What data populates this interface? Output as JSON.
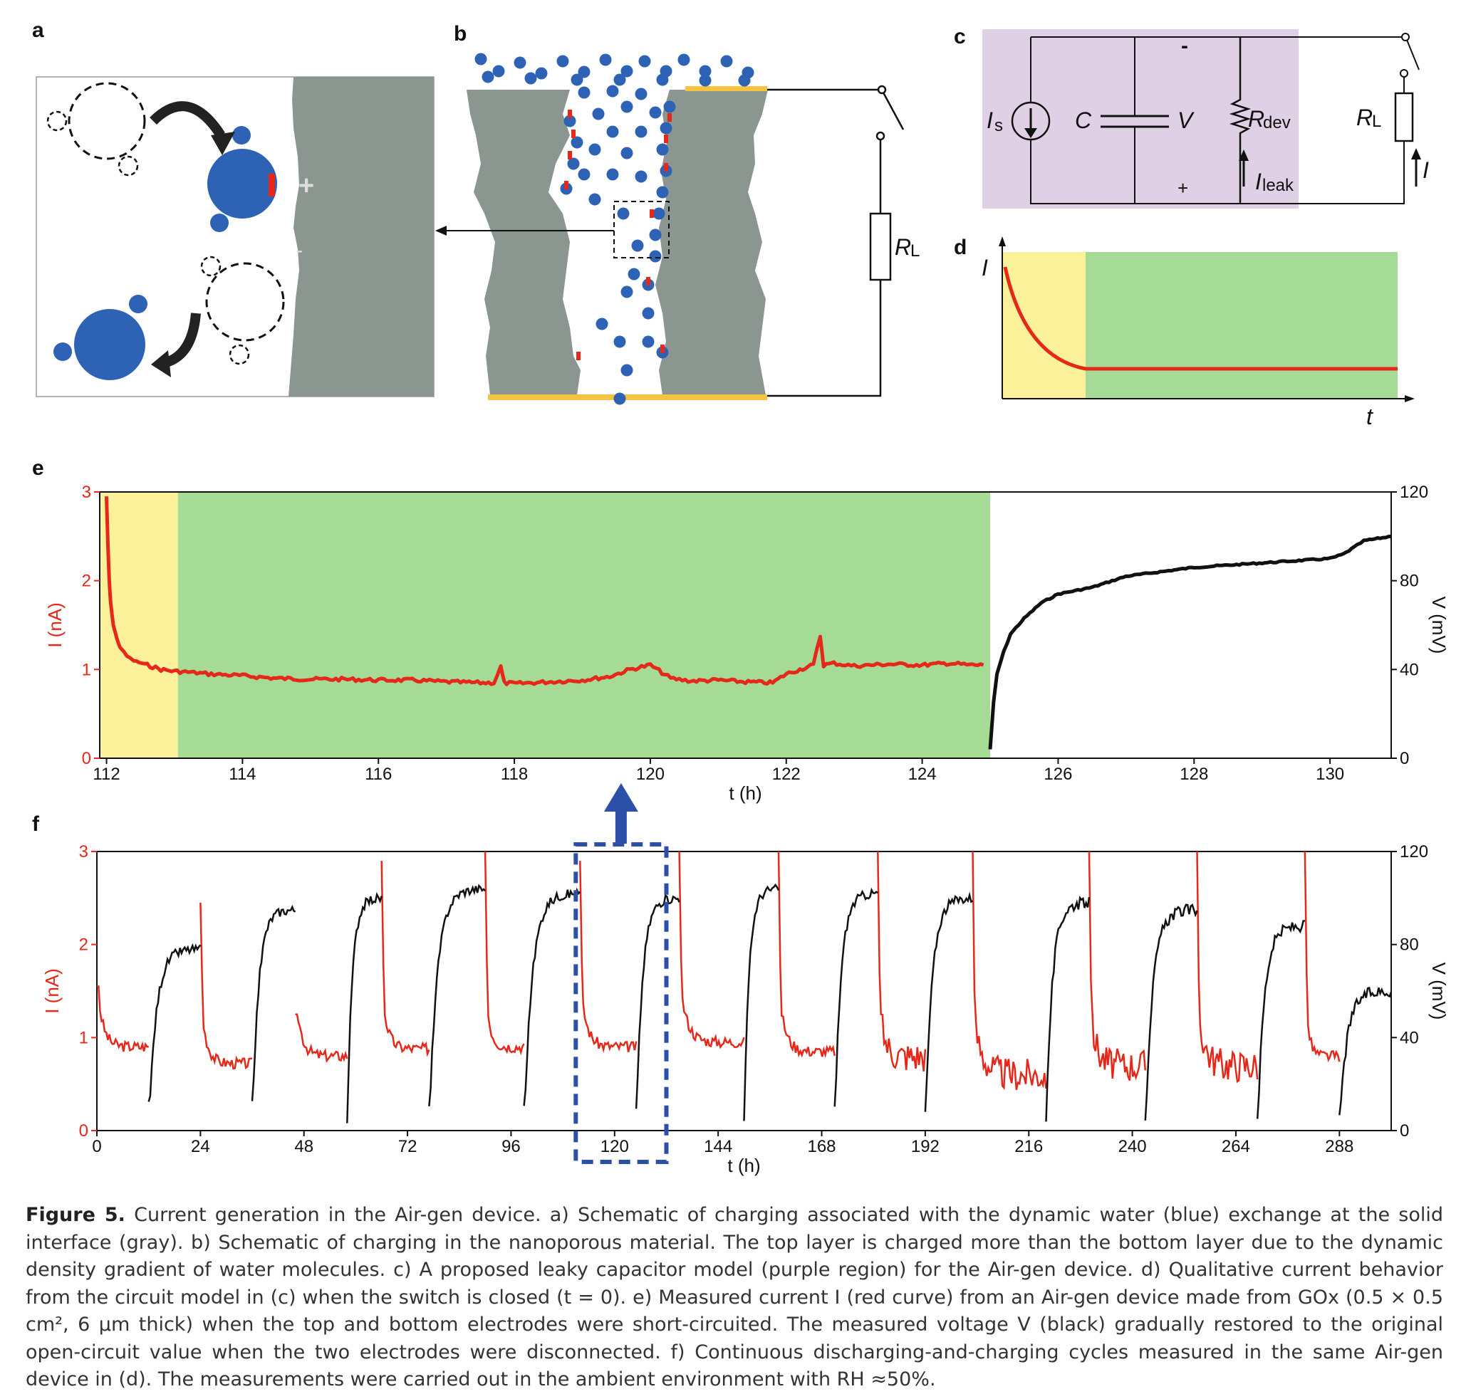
{
  "panels": {
    "a": "a",
    "b": "b",
    "c": "c",
    "d": "d",
    "e": "e",
    "f": "f"
  },
  "circuit": {
    "source": "I",
    "source_sub": "s",
    "cap": "C",
    "volt": "V",
    "rdev": "R",
    "rdev_sub": "dev",
    "rl": "R",
    "rl_sub": "L",
    "ileak": "I",
    "ileak_sub": "leak",
    "icur": "I",
    "minus": "-",
    "plus": "+"
  },
  "panel_b": {
    "rl": "R",
    "rl_sub": "L"
  },
  "panel_d": {
    "ylabel": "I",
    "xlabel": "t"
  },
  "colors": {
    "red": "#e5281a",
    "black": "#111111",
    "yellow": "#fbf19a",
    "green": "#a6db95",
    "purple": "#dfd0e6",
    "blue": "#2e62b4",
    "gray": "#8c9691",
    "gold": "#f5c242",
    "dash_blue": "#2c4fa8"
  },
  "chart_data": [
    {
      "type": "line",
      "panel": "e",
      "xlabel": "t (h)",
      "ylabel_left": "I (nA)",
      "ylabel_right": "V (mV)",
      "xlim": [
        111.9,
        130.9
      ],
      "ylim_left": [
        0,
        3
      ],
      "ylim_right": [
        0,
        120
      ],
      "xticks": [
        "112",
        "114",
        "116",
        "118",
        "120",
        "122",
        "124",
        "126",
        "128",
        "130"
      ],
      "yticks_left": [
        "0",
        "1",
        "2",
        "3"
      ],
      "yticks_right": [
        "0",
        "40",
        "80",
        "120"
      ],
      "shaded": [
        {
          "from": 111.9,
          "to": 113.05,
          "color": "yellow"
        },
        {
          "from": 113.05,
          "to": 125.0,
          "color": "green"
        }
      ],
      "series": [
        {
          "axis": "left",
          "color": "red",
          "x": [
            112.0,
            112.02,
            112.04,
            112.06,
            112.1,
            112.15,
            112.2,
            112.3,
            112.4,
            112.6,
            112.8,
            113.0,
            113.2,
            113.5,
            114.0,
            114.5,
            115.0,
            115.5,
            116.0,
            116.5,
            117.0,
            117.5,
            117.7,
            117.8,
            117.85,
            118.0,
            118.5,
            119.0,
            119.4,
            119.7,
            120.0,
            120.3,
            120.6,
            121.0,
            121.4,
            121.8,
            122.0,
            122.4,
            122.5,
            122.55,
            122.7,
            123.0,
            123.5,
            124.0,
            124.4,
            124.7,
            124.9
          ],
          "y": [
            2.95,
            2.4,
            2.0,
            1.75,
            1.5,
            1.35,
            1.25,
            1.15,
            1.1,
            1.05,
            1.0,
            0.98,
            0.97,
            0.95,
            0.93,
            0.9,
            0.89,
            0.89,
            0.88,
            0.88,
            0.86,
            0.85,
            0.85,
            1.03,
            0.85,
            0.84,
            0.86,
            0.88,
            0.92,
            1.0,
            1.05,
            0.9,
            0.87,
            0.88,
            0.86,
            0.85,
            0.95,
            1.05,
            1.38,
            1.05,
            1.07,
            1.04,
            1.06,
            1.05,
            1.07,
            1.05,
            1.05
          ]
        },
        {
          "axis": "right",
          "color": "black",
          "x": [
            125.0,
            125.05,
            125.1,
            125.2,
            125.3,
            125.5,
            125.75,
            126.0,
            126.5,
            127.0,
            127.5,
            128.0,
            128.5,
            129.0,
            129.5,
            130.0,
            130.2,
            130.4,
            130.5,
            130.7,
            130.9
          ],
          "y": [
            4,
            25,
            38,
            48,
            56,
            63,
            70,
            74,
            77,
            82,
            84,
            86,
            87,
            88,
            89,
            90,
            92,
            96,
            98,
            99,
            100
          ]
        }
      ]
    },
    {
      "type": "line",
      "panel": "f",
      "xlabel": "t (h)",
      "ylabel_left": "I (nA)",
      "ylabel_right": "V (mV)",
      "xlim": [
        0,
        300
      ],
      "ylim_left": [
        0,
        3
      ],
      "ylim_right": [
        0,
        120
      ],
      "xticks": [
        "0",
        "24",
        "48",
        "72",
        "96",
        "120",
        "144",
        "168",
        "192",
        "216",
        "240",
        "264",
        "288"
      ],
      "yticks_left": [
        "0",
        "1",
        "2",
        "3"
      ],
      "yticks_right": [
        "0",
        "40",
        "80",
        "120"
      ],
      "highlight_box": {
        "from": 111,
        "to": 132
      },
      "current_segments": [
        [
          0,
          12
        ],
        [
          24,
          36
        ],
        [
          46,
          58
        ],
        [
          66,
          77
        ],
        [
          90,
          99
        ],
        [
          112,
          125
        ],
        [
          135,
          150
        ],
        [
          158,
          171
        ],
        [
          181,
          192
        ],
        [
          203,
          220
        ],
        [
          230,
          243
        ],
        [
          255,
          269
        ],
        [
          280,
          288
        ]
      ],
      "voltage_segments": [
        [
          12,
          24
        ],
        [
          36,
          46
        ],
        [
          58,
          66
        ],
        [
          77,
          90
        ],
        [
          99,
          112
        ],
        [
          125,
          135
        ],
        [
          150,
          158
        ],
        [
          171,
          181
        ],
        [
          192,
          203
        ],
        [
          220,
          230
        ],
        [
          243,
          255
        ],
        [
          269,
          280
        ],
        [
          288,
          300
        ]
      ],
      "voltage_peaks": [
        78,
        95,
        100,
        104,
        102,
        100,
        104,
        102,
        100,
        98,
        95,
        88,
        60
      ],
      "current_floor": [
        0.9,
        0.72,
        0.8,
        0.88,
        0.9,
        0.9,
        0.95,
        0.85,
        0.8,
        0.6,
        0.7,
        0.7,
        0.8
      ],
      "spike_heights": [
        1.55,
        2.45,
        1.25,
        2.9,
        3.0,
        2.9,
        3.0,
        3.0,
        3.0,
        3.0,
        3.0,
        3.0,
        3.0
      ]
    }
  ],
  "caption": {
    "title": "Figure 5.",
    "text": "Current generation in the Air-gen device. a) Schematic of charging associated with the dynamic water (blue) exchange at the solid interface (gray). b) Schematic of charging in the nanoporous material. The top layer is charged more than the bottom layer due to the dynamic density gradient of water molecules. c) A proposed leaky capacitor model (purple region) for the Air-gen device. d) Qualitative current behavior from the circuit model in (c) when the switch is closed (t = 0). e) Measured current I (red curve) from an Air-gen device made from GOx (0.5 × 0.5 cm², 6 µm thick) when the top and bottom electrodes were short-circuited. The measured voltage V (black) gradually restored to the original open-circuit value when the two electrodes were disconnected. f) Continuous discharging-and-charging cycles measured in the same Air-gen device in (d). The measurements were carried out in the ambient environment with RH ≈50%."
  }
}
